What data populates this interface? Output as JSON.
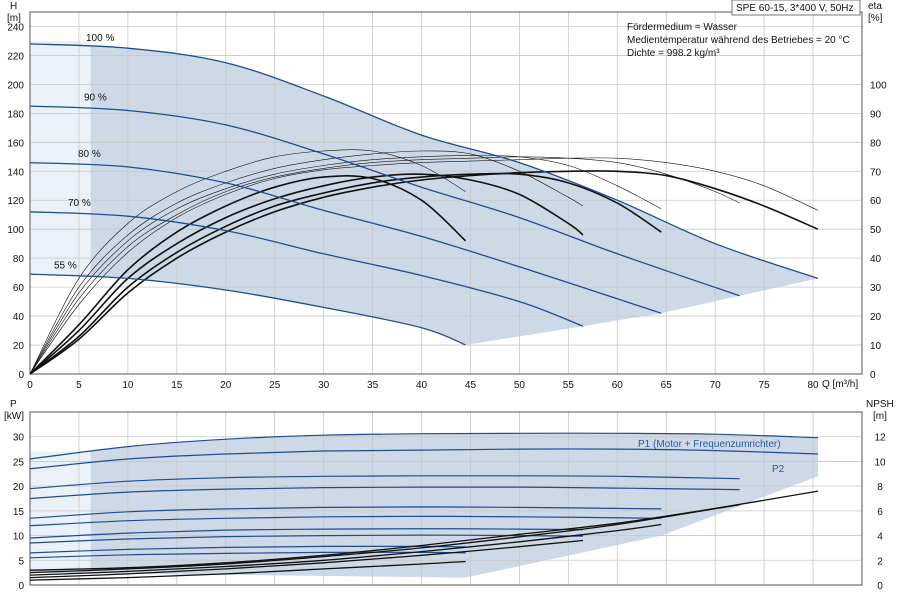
{
  "header": {
    "title": "SPE 60-15, 3*400 V, 50Hz",
    "info": [
      "Fördermedium = Wasser",
      "Medientemperatur während des Betriebes = 20 °C",
      "Dichte = 998.2 kg/m³"
    ]
  },
  "colors": {
    "curve": "#1f4e8c",
    "area": "#cdd9e6",
    "area_light": "#eaf1f9",
    "grid": "#c8c8c8",
    "black": "#111111"
  },
  "chart_data": [
    {
      "type": "line",
      "id": "head",
      "ylabel": "H",
      "yunit": "[m]",
      "y2label": "eta",
      "y2unit": "[%]",
      "xlabel": "Q [m³/h]",
      "xlim": [
        0,
        85
      ],
      "ylim": [
        0,
        250
      ],
      "y2lim": [
        0,
        125
      ],
      "xticks": [
        0,
        5,
        10,
        15,
        20,
        25,
        30,
        35,
        40,
        45,
        50,
        55,
        60,
        65,
        70,
        75,
        80
      ],
      "yticks": [
        0,
        20,
        40,
        60,
        80,
        100,
        120,
        140,
        160,
        180,
        200,
        220,
        240
      ],
      "y2ticks": [
        0,
        10,
        20,
        30,
        40,
        50,
        60,
        70,
        80,
        90,
        100
      ],
      "series": [
        {
          "name": "100 %",
          "x": [
            0,
            10,
            20,
            30,
            40,
            50,
            60,
            70,
            80.5
          ],
          "y": [
            228,
            225,
            215,
            192,
            165,
            146,
            120,
            90,
            66
          ]
        },
        {
          "name": "90 %",
          "x": [
            0,
            10,
            20,
            30,
            40,
            50,
            60,
            72.5
          ],
          "y": [
            185,
            182,
            172,
            152,
            129,
            108,
            83,
            54
          ]
        },
        {
          "name": "80 %",
          "x": [
            0,
            10,
            20,
            30,
            40,
            50,
            64.5
          ],
          "y": [
            146,
            143,
            132,
            113,
            95,
            74,
            42
          ]
        },
        {
          "name": "70 %",
          "x": [
            0,
            10,
            20,
            30,
            40,
            50,
            56.5
          ],
          "y": [
            112,
            109,
            99,
            83,
            68,
            50,
            33
          ]
        },
        {
          "name": "55 %",
          "x": [
            0,
            10,
            20,
            30,
            40,
            44.5
          ],
          "y": [
            69,
            66,
            58,
            46,
            32,
            20
          ]
        }
      ],
      "efficiency": [
        {
          "x": [
            0,
            5,
            10,
            15,
            20,
            25,
            30,
            35,
            40,
            45,
            50,
            55,
            60,
            65,
            70,
            75,
            80.5
          ],
          "y": [
            0,
            24,
            42,
            54,
            62,
            67.5,
            70.5,
            72,
            73,
            73.5,
            74,
            74.5,
            74.5,
            73,
            70,
            65,
            56.5
          ]
        },
        {
          "x": [
            0,
            5,
            10,
            15,
            20,
            25,
            30,
            35,
            40,
            45,
            50,
            55,
            60,
            65,
            70,
            72.5
          ],
          "y": [
            0,
            26,
            44,
            55,
            63,
            68,
            71,
            73,
            74,
            74.5,
            75,
            74.5,
            73,
            69,
            63,
            59
          ]
        },
        {
          "x": [
            0,
            5,
            10,
            15,
            20,
            25,
            30,
            35,
            40,
            45,
            50,
            55,
            60,
            64.5
          ],
          "y": [
            0,
            28,
            46,
            57,
            64,
            69,
            72,
            74,
            75,
            75.5,
            75,
            72,
            65,
            57
          ]
        },
        {
          "x": [
            0,
            5,
            10,
            15,
            20,
            25,
            30,
            35,
            40,
            45,
            50,
            55,
            56.5
          ],
          "y": [
            0,
            30,
            48,
            59,
            66,
            71,
            74,
            76,
            77,
            76,
            70,
            61,
            58
          ]
        },
        {
          "x": [
            0,
            5,
            10,
            15,
            20,
            25,
            30,
            35,
            40,
            44.5
          ],
          "y": [
            0,
            33,
            52,
            63,
            70,
            75,
            77,
            77,
            72,
            63
          ]
        },
        {
          "x": [
            0,
            5,
            10,
            15,
            20,
            25,
            30,
            35,
            40,
            45,
            50,
            55,
            60,
            65,
            70,
            75,
            80.5
          ],
          "y": [
            0,
            12,
            28,
            40,
            49,
            56,
            61,
            64.5,
            67,
            68.5,
            69.5,
            70,
            70,
            68.5,
            64,
            58,
            50
          ]
        },
        {
          "x": [
            0,
            5,
            10,
            15,
            20,
            25,
            30,
            35,
            40,
            45,
            50,
            55,
            60,
            64.5
          ],
          "y": [
            0,
            13,
            30,
            42,
            51,
            58,
            62.5,
            66,
            68,
            69,
            69,
            66,
            59,
            49
          ]
        },
        {
          "x": [
            0,
            5,
            10,
            15,
            20,
            25,
            30,
            35,
            40,
            45,
            50,
            55,
            56.5
          ],
          "y": [
            0,
            15,
            33,
            45,
            54,
            60.5,
            65,
            68,
            69,
            67,
            62,
            52,
            48
          ]
        },
        {
          "x": [
            0,
            5,
            10,
            15,
            20,
            25,
            30,
            35,
            40,
            44.5
          ],
          "y": [
            0,
            17,
            36,
            49,
            58,
            64.5,
            68,
            67.5,
            60,
            46
          ]
        }
      ]
    },
    {
      "type": "line",
      "id": "power",
      "ylabel": "P",
      "yunit": "[kW]",
      "y2label": "NPSH",
      "y2unit": "[m]",
      "xlim": [
        0,
        85
      ],
      "ylim": [
        0,
        35
      ],
      "y2lim": [
        0,
        14
      ],
      "yticks": [
        0,
        5,
        10,
        15,
        20,
        25,
        30
      ],
      "y2ticks": [
        0,
        2,
        4,
        6,
        8,
        10,
        12
      ],
      "labels": [
        "P1 (Motor + Frequenzumrichter)",
        "P2"
      ],
      "series": [
        {
          "name": "P1 (Motor + Frequenzumrichter)",
          "x": [
            0,
            10,
            20,
            30,
            40,
            50,
            60,
            70,
            80.5
          ],
          "y": [
            25.5,
            28,
            29.5,
            30.3,
            30.6,
            30.7,
            30.7,
            30.5,
            29.8
          ]
        },
        {
          "name": "P2",
          "x": [
            0,
            10,
            20,
            30,
            40,
            50,
            60,
            70,
            80.5
          ],
          "y": [
            23.5,
            25.5,
            26.5,
            27.1,
            27.3,
            27.5,
            27.5,
            27.2,
            26.5
          ]
        },
        {
          "x": [
            0,
            10,
            20,
            30,
            40,
            50,
            60,
            72.5
          ],
          "y": [
            19.5,
            21,
            21.7,
            22,
            22.1,
            22.1,
            22,
            21.5
          ]
        },
        {
          "x": [
            0,
            10,
            20,
            30,
            40,
            50,
            60,
            72.5
          ],
          "y": [
            17.5,
            18.8,
            19.4,
            19.7,
            19.8,
            19.8,
            19.6,
            19.3
          ]
        },
        {
          "x": [
            0,
            10,
            20,
            30,
            40,
            50,
            64.5
          ],
          "y": [
            13.5,
            14.8,
            15.4,
            15.7,
            15.8,
            15.7,
            15.4
          ]
        },
        {
          "x": [
            0,
            10,
            20,
            30,
            40,
            50,
            64.5
          ],
          "y": [
            12,
            13,
            13.5,
            13.8,
            13.9,
            13.8,
            13.5
          ]
        },
        {
          "x": [
            0,
            10,
            20,
            30,
            40,
            50,
            56.5
          ],
          "y": [
            9.5,
            10.5,
            11.1,
            11.3,
            11.4,
            11.3,
            11.2
          ]
        },
        {
          "x": [
            0,
            10,
            20,
            30,
            40,
            50,
            56.5
          ],
          "y": [
            8.5,
            9.3,
            9.8,
            10,
            10.1,
            10,
            9.9
          ]
        },
        {
          "x": [
            0,
            10,
            20,
            30,
            40,
            44.5
          ],
          "y": [
            6.5,
            7.2,
            7.6,
            7.8,
            7.8,
            7.7
          ]
        },
        {
          "x": [
            0,
            10,
            20,
            30,
            40,
            44.5
          ],
          "y": [
            5.5,
            6.1,
            6.4,
            6.6,
            6.6,
            6.5
          ]
        }
      ],
      "npsh": [
        {
          "x": [
            0,
            10,
            20,
            30,
            40,
            50,
            60,
            70,
            80.5
          ],
          "y": [
            1.2,
            1.4,
            1.8,
            2.4,
            3.2,
            4.1,
            5.0,
            6.2,
            7.6
          ]
        },
        {
          "x": [
            0,
            10,
            20,
            30,
            40,
            50,
            60,
            72.5
          ],
          "y": [
            1.0,
            1.3,
            1.7,
            2.3,
            3.0,
            3.9,
            4.9,
            6.5
          ]
        },
        {
          "x": [
            0,
            10,
            20,
            30,
            40,
            50,
            60,
            64.5
          ],
          "y": [
            0.8,
            1.1,
            1.5,
            2.0,
            2.7,
            3.5,
            4.4,
            4.9
          ]
        },
        {
          "x": [
            0,
            10,
            20,
            30,
            40,
            50,
            56.5
          ],
          "y": [
            0.6,
            0.9,
            1.3,
            1.8,
            2.4,
            3.1,
            3.6
          ]
        },
        {
          "x": [
            0,
            10,
            20,
            30,
            40,
            44.5
          ],
          "y": [
            0.4,
            0.6,
            0.9,
            1.3,
            1.7,
            1.9
          ]
        }
      ]
    }
  ]
}
